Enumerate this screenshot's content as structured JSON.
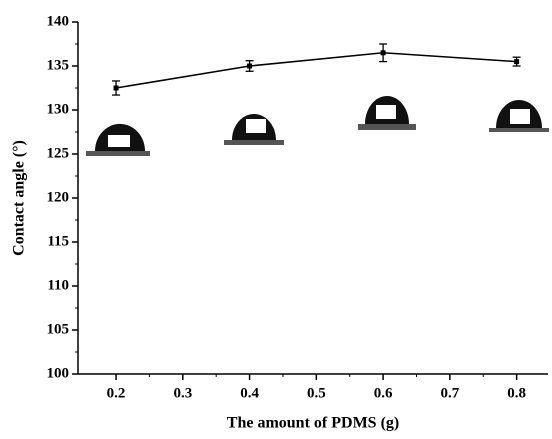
{
  "chart_data": {
    "type": "line",
    "x_label": "The amount of PDMS (g)",
    "y_label": "Contact angle (°)",
    "x": [
      0.2,
      0.4,
      0.6,
      0.8
    ],
    "series": [
      {
        "color": "#000000",
        "values": [
          132.5,
          135.0,
          136.5,
          135.5
        ],
        "errors": [
          0.8,
          0.6,
          1.0,
          0.5
        ]
      }
    ],
    "xlim": [
      0.143,
      0.847
    ],
    "ylim": [
      100,
      140
    ],
    "xticks": [
      0.2,
      0.3,
      0.4,
      0.5,
      0.6,
      0.7,
      0.8
    ],
    "yticks": [
      100,
      105,
      110,
      115,
      120,
      125,
      130,
      135,
      140
    ]
  }
}
